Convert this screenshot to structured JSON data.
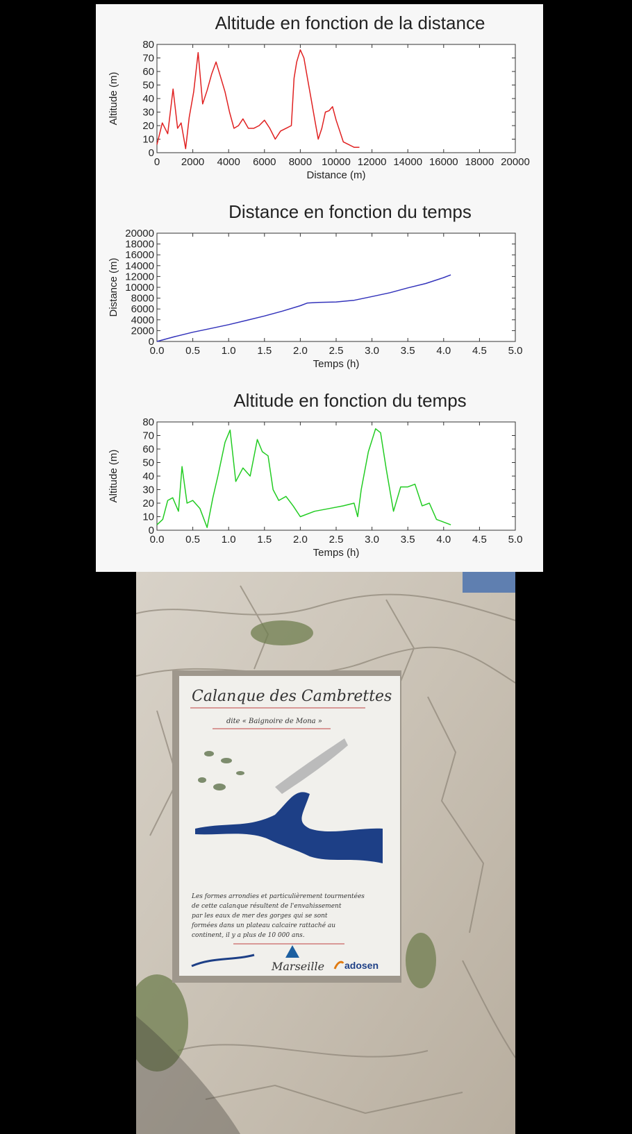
{
  "chart_data": [
    {
      "type": "line",
      "title": "Altitude en fonction de la distance",
      "xlabel": "Distance (m)",
      "ylabel": "Altitude (m)",
      "xlim": [
        0,
        20000
      ],
      "ylim": [
        0,
        80
      ],
      "xticks": [
        "0",
        "2000",
        "4000",
        "6000",
        "8000",
        "10000",
        "12000",
        "14000",
        "16000",
        "18000",
        "20000"
      ],
      "yticks": [
        "0",
        "10",
        "20",
        "30",
        "40",
        "50",
        "60",
        "70",
        "80"
      ],
      "color": "#e02020",
      "series": [
        {
          "x": [
            0,
            300,
            600,
            900,
            1150,
            1350,
            1600,
            1800,
            2050,
            2300,
            2550,
            2800,
            3050,
            3300,
            3550,
            3800,
            4050,
            4300,
            4550,
            4800,
            5100,
            5400,
            5700,
            6000,
            6300,
            6600,
            6900,
            7200,
            7500,
            7650,
            7800,
            8000,
            8200,
            8400,
            8600,
            8800,
            9000,
            9200,
            9400,
            9600,
            9800,
            10000,
            10200,
            10400,
            10700,
            11000,
            11300
          ],
          "y": [
            6,
            22,
            14,
            47,
            18,
            22,
            3,
            26,
            45,
            74,
            36,
            46,
            58,
            67,
            56,
            45,
            30,
            18,
            20,
            25,
            18,
            18,
            20,
            24,
            18,
            10,
            16,
            18,
            20,
            55,
            67,
            76,
            70,
            55,
            40,
            25,
            10,
            18,
            30,
            31,
            34,
            24,
            16,
            8,
            6,
            4,
            4
          ]
        }
      ]
    },
    {
      "type": "line",
      "title": "Distance en fonction du temps",
      "xlabel": "Temps (h)",
      "ylabel": "Distance (m)",
      "xlim": [
        0,
        5
      ],
      "ylim": [
        0,
        20000
      ],
      "xticks": [
        "0.0",
        "0.5",
        "1.0",
        "1.5",
        "2.0",
        "2.5",
        "3.0",
        "3.5",
        "4.0",
        "4.5",
        "5.0"
      ],
      "yticks": [
        "0",
        "2000",
        "4000",
        "6000",
        "8000",
        "10000",
        "12000",
        "14000",
        "16000",
        "18000",
        "20000"
      ],
      "color": "#3333bb",
      "series": [
        {
          "x": [
            0,
            0.25,
            0.5,
            0.75,
            1.0,
            1.25,
            1.5,
            1.75,
            2.0,
            2.1,
            2.25,
            2.5,
            2.75,
            3.0,
            3.25,
            3.5,
            3.75,
            4.0,
            4.1
          ],
          "y": [
            0,
            900,
            1700,
            2400,
            3100,
            3900,
            4700,
            5600,
            6600,
            7100,
            7200,
            7300,
            7600,
            8300,
            9000,
            9900,
            10700,
            11800,
            12300
          ]
        }
      ]
    },
    {
      "type": "line",
      "title": "Altitude en fonction du temps",
      "xlabel": "Temps (h)",
      "ylabel": "Altitude (m)",
      "xlim": [
        0,
        5
      ],
      "ylim": [
        0,
        80
      ],
      "xticks": [
        "0.0",
        "0.5",
        "1.0",
        "1.5",
        "2.0",
        "2.5",
        "3.0",
        "3.5",
        "4.0",
        "4.5",
        "5.0"
      ],
      "yticks": [
        "0",
        "10",
        "20",
        "30",
        "40",
        "50",
        "60",
        "70",
        "80"
      ],
      "color": "#22cc22",
      "series": [
        {
          "x": [
            0,
            0.08,
            0.15,
            0.22,
            0.3,
            0.35,
            0.42,
            0.5,
            0.6,
            0.7,
            0.78,
            0.85,
            0.95,
            1.02,
            1.1,
            1.2,
            1.3,
            1.4,
            1.47,
            1.55,
            1.62,
            1.7,
            1.8,
            1.9,
            2.0,
            2.2,
            2.4,
            2.6,
            2.75,
            2.8,
            2.85,
            2.95,
            3.05,
            3.12,
            3.2,
            3.3,
            3.4,
            3.5,
            3.6,
            3.7,
            3.8,
            3.9,
            4.0,
            4.1
          ],
          "y": [
            4,
            8,
            22,
            24,
            14,
            47,
            20,
            22,
            16,
            2,
            24,
            40,
            65,
            74,
            36,
            46,
            40,
            67,
            58,
            55,
            30,
            22,
            25,
            18,
            10,
            14,
            16,
            18,
            20,
            10,
            30,
            58,
            75,
            72,
            45,
            14,
            32,
            32,
            34,
            18,
            20,
            8,
            6,
            4
          ]
        }
      ]
    }
  ],
  "photo": {
    "sign_title": "Calanque des Cambrettes",
    "sign_subtitle": "dite « Baignoire de Mona »",
    "sign_body": "Les formes arrondies et particulièrement tourmentées de cette calanque résultent de l'envahissement par les eaux de mer des gorges qui se sont formées dans un plateau calcaire rattaché au continent, il y a plus de 10 000 ans.",
    "sign_logo_marseille": "Marseille",
    "sign_logo_adosen": "adosen"
  }
}
